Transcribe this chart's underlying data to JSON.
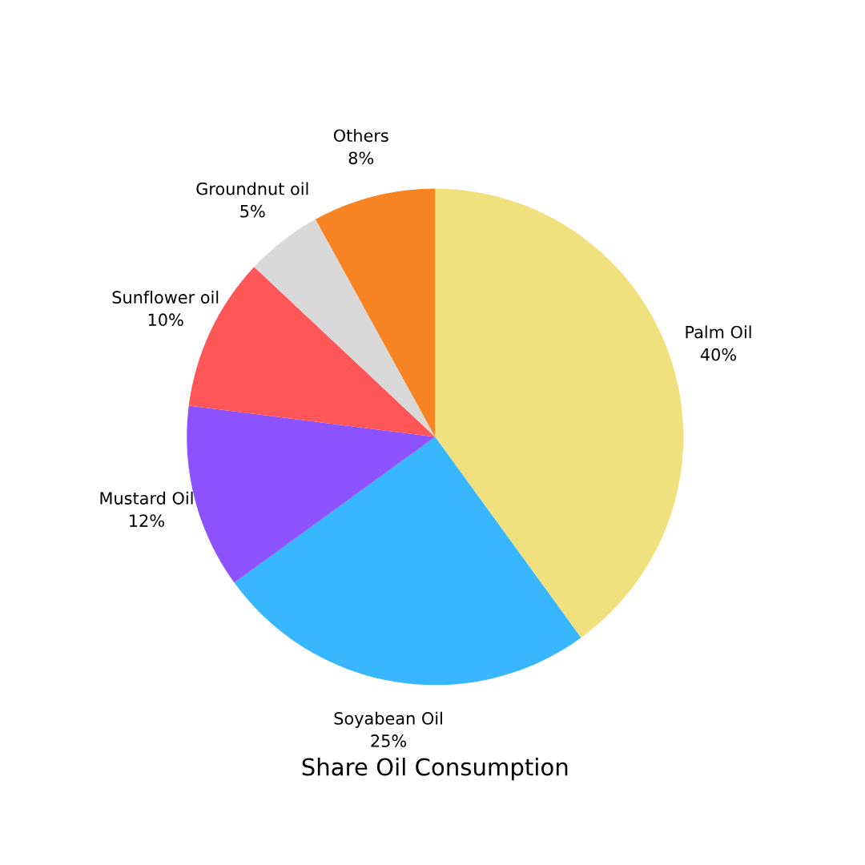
{
  "chart_data": {
    "type": "pie",
    "title": "Share Oil Consumption",
    "categories": [
      "Palm Oil",
      "Soyabean Oil",
      "Mustard Oil",
      "Sunflower oil",
      "Groundnut oil",
      "Others"
    ],
    "values": [
      40,
      25,
      12,
      10,
      5,
      8
    ],
    "colors": [
      "#f1e17e",
      "#38b6ff",
      "#8c52ff",
      "#ff5757",
      "#d9d9d9",
      "#f78322"
    ],
    "value_labels": [
      "40%",
      "25%",
      "12%",
      "10%",
      "5%",
      "8%"
    ]
  }
}
